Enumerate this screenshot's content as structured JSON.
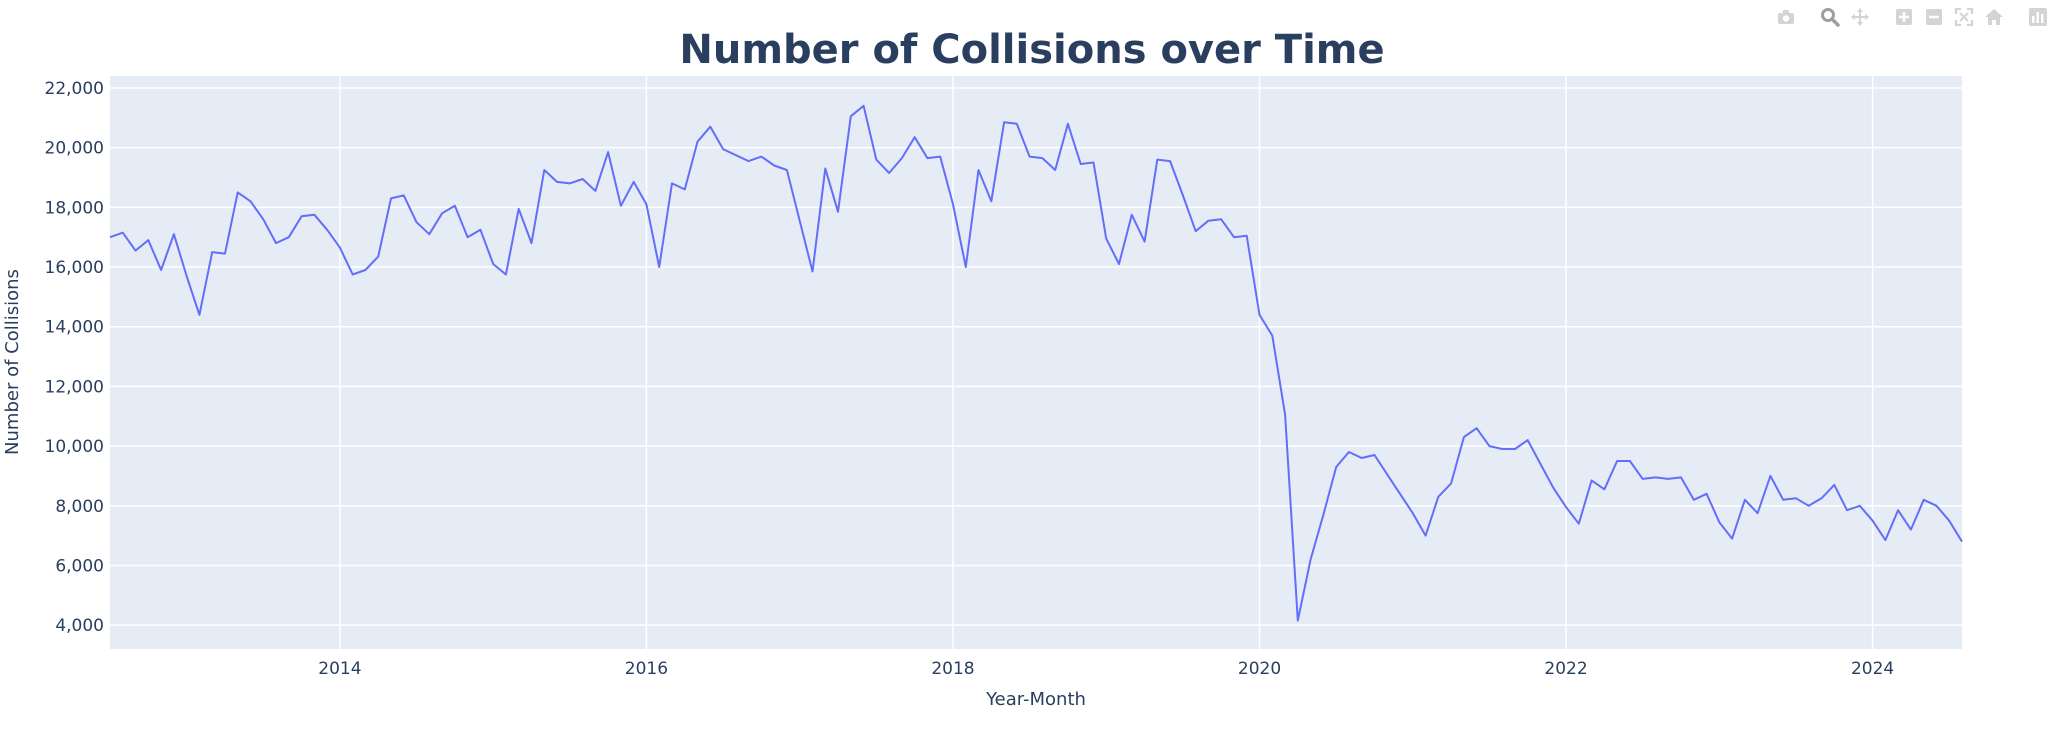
{
  "colors": {
    "line": "#636efa",
    "plot_bg": "#e5ecf6",
    "grid": "#ffffff",
    "title": "#2a3f5f",
    "axis_text": "#2a3f5f",
    "modebar_icon": "#d4d4d4",
    "modebar_icon_active": "#9e9e9e"
  },
  "modebar": [
    {
      "name": "camera-icon",
      "active": false
    },
    {
      "name": "zoom-icon",
      "active": true
    },
    {
      "name": "pan-icon",
      "active": false
    },
    {
      "name": "zoom-in-icon",
      "active": false
    },
    {
      "name": "zoom-out-icon",
      "active": false
    },
    {
      "name": "autoscale-icon",
      "active": false
    },
    {
      "name": "home-icon",
      "active": false
    },
    {
      "name": "plotly-logo-icon",
      "active": false
    }
  ],
  "chart_data": {
    "type": "line",
    "title": "Number of Collisions over Time",
    "xlabel": "Year-Month",
    "ylabel": "Number of Collisions",
    "x_start": "2012-07",
    "x_end": "2024-08",
    "xlim": [
      "2012-07",
      "2024-08"
    ],
    "ylim": [
      3200,
      22400
    ],
    "xticks": [
      "2014",
      "2016",
      "2018",
      "2020",
      "2022",
      "2024"
    ],
    "yticks": [
      "4,000",
      "6,000",
      "8,000",
      "10,000",
      "12,000",
      "14,000",
      "16,000",
      "18,000",
      "20,000",
      "22,000"
    ],
    "grid": true,
    "legend": "none",
    "series": [
      {
        "values": [
          17000,
          17150,
          16550,
          16900,
          15900,
          17100,
          15700,
          14400,
          16500,
          16450,
          18500,
          18200,
          17600,
          16800,
          17000,
          17700,
          17750,
          17250,
          16650,
          15750,
          15900,
          16350,
          18300,
          18400,
          17500,
          17100,
          17800,
          18050,
          17000,
          17250,
          16100,
          15750,
          17950,
          16800,
          19250,
          18850,
          18800,
          18950,
          18550,
          19850,
          18050,
          18850,
          18100,
          16000,
          18800,
          18600,
          20200,
          20700,
          19950,
          19750,
          19550,
          19700,
          19400,
          19250,
          17550,
          15850,
          19300,
          17850,
          21050,
          21400,
          19600,
          19150,
          19650,
          20350,
          19650,
          19700,
          18100,
          16000,
          19250,
          18200,
          20850,
          20800,
          19700,
          19650,
          19250,
          20800,
          19450,
          19500,
          16950,
          16100,
          17750,
          16850,
          19600,
          19550,
          18400,
          17200,
          17550,
          17600,
          17000,
          17050,
          14400,
          13700,
          11050,
          4150,
          6200,
          7700,
          9300,
          9800,
          9600,
          9700,
          9050,
          8400,
          7750,
          7000,
          8300,
          8750,
          10300,
          10600,
          10000,
          9900,
          9900,
          10200,
          9400,
          8600,
          7950,
          7400,
          8850,
          8550,
          9500,
          9500,
          8900,
          8950,
          8900,
          8950,
          8200,
          8400,
          7450,
          6900,
          8200,
          7750,
          9000,
          8200,
          8250,
          8000,
          8250,
          8700,
          7850,
          8000,
          7500,
          6850,
          7850,
          7200,
          8200,
          8000,
          7500,
          6800
        ]
      }
    ]
  }
}
